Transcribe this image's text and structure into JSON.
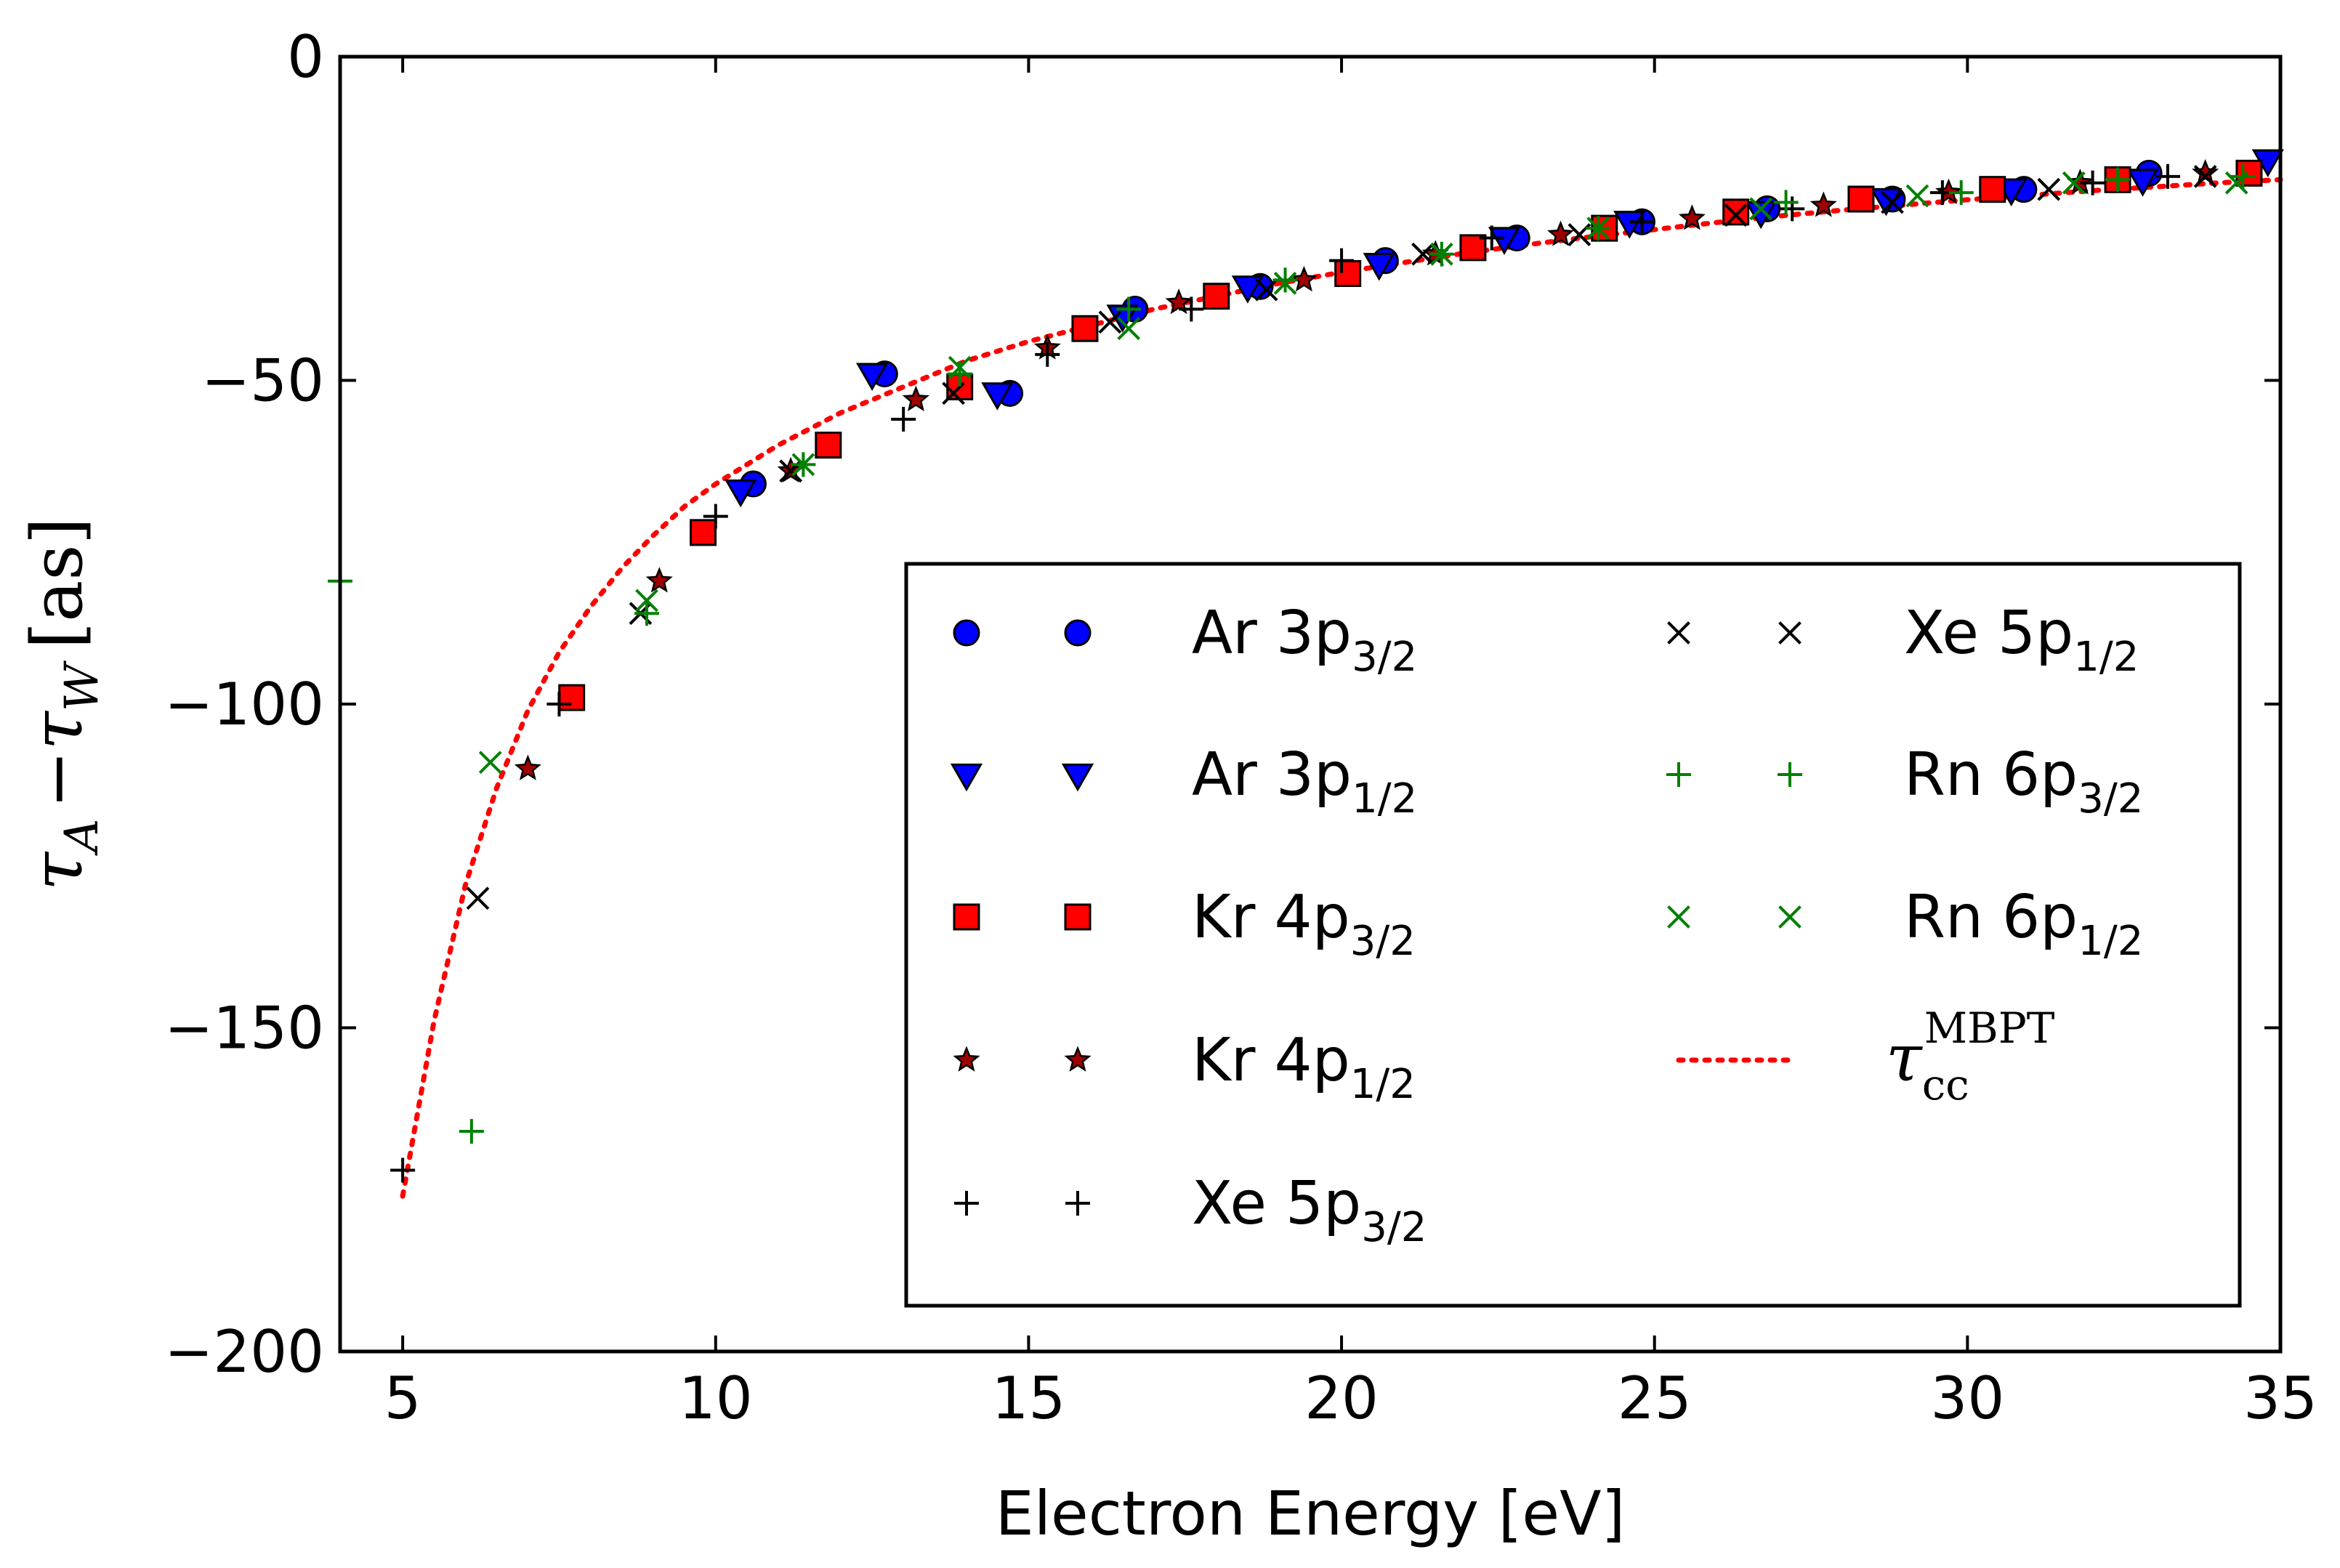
{
  "chart_data": {
    "type": "scatter",
    "title": "",
    "xlabel": "Electron Energy [eV]",
    "ylabel": {
      "tau": "τ",
      "sub_a": "A",
      "minus": "−",
      "sub_w": "W",
      "unit": "[as]"
    },
    "xlim": [
      4,
      35
    ],
    "ylim": [
      -200,
      0
    ],
    "xticks": [
      5,
      10,
      15,
      20,
      25,
      30,
      35
    ],
    "yticks": [
      0,
      -50,
      -100,
      -150,
      -200
    ],
    "xtick_labels": [
      "5",
      "10",
      "15",
      "20",
      "25",
      "30",
      "35"
    ],
    "ytick_labels": [
      "0",
      "−50",
      "−100",
      "−150",
      "−200"
    ],
    "legend_position": "lower-right",
    "series": [
      {
        "name": "Ar 3p",
        "sub": "3/2",
        "marker": "circle",
        "color": "#0000ff",
        "x": [
          10.6,
          12.7,
          14.7,
          16.7,
          18.7,
          20.7,
          22.8,
          24.8,
          26.8,
          28.8,
          30.9,
          32.9
        ],
        "y": [
          -66,
          -49,
          -52,
          -39,
          -35.5,
          -31.5,
          -28,
          -25.5,
          -23.5,
          -22,
          -20.5,
          -18
        ]
      },
      {
        "name": "Ar 3p",
        "sub": "1/2",
        "marker": "triangle-down",
        "color": "#0000ff",
        "x": [
          10.4,
          12.5,
          14.5,
          16.5,
          18.5,
          20.6,
          22.6,
          24.6,
          26.7,
          28.7,
          30.7,
          32.8,
          34.8
        ],
        "y": [
          -67,
          -49,
          -52,
          -40,
          -35.5,
          -32,
          -28,
          -25.5,
          -24,
          -22,
          -20.5,
          -19,
          -16
        ]
      },
      {
        "name": "Kr 4p",
        "sub": "3/2",
        "marker": "square",
        "color": "#ff0000",
        "x": [
          7.7,
          9.8,
          11.8,
          13.9,
          15.9,
          18.0,
          20.1,
          22.1,
          24.2,
          26.3,
          28.3,
          30.4,
          32.4,
          34.5
        ],
        "y": [
          -99,
          -73.5,
          -60,
          -51,
          -42,
          -37,
          -33.5,
          -29.5,
          -26.5,
          -24,
          -22,
          -20.5,
          -19,
          -18
        ]
      },
      {
        "name": "Kr 4p",
        "sub": "1/2",
        "marker": "star",
        "color": "#a00000",
        "x": [
          7.0,
          9.1,
          11.2,
          13.2,
          15.3,
          17.4,
          19.4,
          21.5,
          23.5,
          25.6,
          27.7,
          29.7,
          31.8,
          33.8
        ],
        "y": [
          -110,
          -81,
          -64,
          -53,
          -45,
          -38,
          -34.5,
          -30.5,
          -27.5,
          -25,
          -23,
          -21,
          -19.5,
          -18
        ]
      },
      {
        "name": "Xe 5p",
        "sub": "3/2",
        "marker": "plus",
        "color": "#000000",
        "x": [
          5.0,
          7.5,
          10.0,
          13.0,
          15.3,
          17.6,
          20.0,
          22.4,
          24.8,
          27.2,
          29.6,
          32.0,
          33.2
        ],
        "y": [
          -172,
          -100,
          -71,
          -56,
          -46,
          -39,
          -31.5,
          -28,
          -25.5,
          -23.5,
          -21,
          -19.5,
          -18.5
        ]
      },
      {
        "name": "Xe 5p",
        "sub": "1/2",
        "marker": "x",
        "color": "#000000",
        "x": [
          6.2,
          8.8,
          11.2,
          13.8,
          16.3,
          18.8,
          21.3,
          23.8,
          26.3,
          28.8,
          31.3,
          33.8
        ],
        "y": [
          -130,
          -86,
          -64,
          -52,
          -41,
          -36,
          -30.5,
          -27.5,
          -24.5,
          -22.5,
          -20.5,
          -18.5
        ]
      },
      {
        "name": "Rn 6p",
        "sub": "3/2",
        "marker": "plus",
        "color": "#008000",
        "x": [
          4.0,
          6.1,
          8.9,
          11.4,
          13.9,
          16.6,
          19.1,
          21.6,
          24.1,
          27.1,
          29.9,
          32.4,
          34.4
        ],
        "y": [
          -81,
          -166,
          -86,
          -63,
          -49,
          -39,
          -34.5,
          -30.5,
          -26.5,
          -22.5,
          -21,
          -19,
          -18.5
        ]
      },
      {
        "name": "Rn 6p",
        "sub": "1/2",
        "marker": "x",
        "color": "#008000",
        "x": [
          6.4,
          8.9,
          11.4,
          13.9,
          16.6,
          19.1,
          21.6,
          24.1,
          26.7,
          29.2,
          31.7,
          34.3
        ],
        "y": [
          -109,
          -84,
          -63,
          -48,
          -42,
          -35,
          -30.5,
          -26.5,
          -23.5,
          -21.5,
          -19.5,
          -19.5
        ]
      }
    ],
    "theory": {
      "name": "τ",
      "sub": "cc",
      "sup": "MBPT",
      "style": "dotted",
      "color": "#ff0000",
      "x": [
        5,
        5.5,
        6,
        6.5,
        7,
        7.5,
        8,
        8.5,
        9,
        9.5,
        10,
        11,
        12,
        13,
        14,
        15,
        16,
        17,
        18,
        19,
        20,
        21,
        22,
        23,
        24,
        25,
        26,
        27,
        28,
        29,
        30,
        31,
        32,
        33,
        34,
        35
      ],
      "y": [
        -176,
        -149,
        -128,
        -113,
        -101,
        -92,
        -85,
        -79,
        -74,
        -69.5,
        -66,
        -60,
        -55,
        -51,
        -47,
        -44,
        -41.5,
        -39,
        -37,
        -35,
        -33.3,
        -31.8,
        -30.3,
        -29,
        -27.8,
        -26.7,
        -25.6,
        -24.6,
        -23.7,
        -22.9,
        -22.1,
        -21.4,
        -20.7,
        -20.1,
        -19.5,
        -19
      ]
    }
  }
}
